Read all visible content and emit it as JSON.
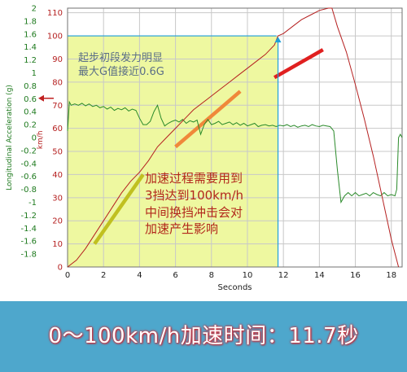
{
  "chart_data": {
    "type": "line",
    "xlabel": "Seconds",
    "ylabel_left": "Longitudinal Acceleration (g)",
    "ylabel_speed": "km/h",
    "xlim": [
      0,
      18.6
    ],
    "ylim_speed": [
      0,
      112
    ],
    "ylim_accel": [
      -2,
      2
    ],
    "x_ticks": [
      "0",
      "2",
      "4",
      "6",
      "8",
      "10",
      "12",
      "14",
      "16",
      "18"
    ],
    "speed_ticks": [
      "0",
      "10",
      "20",
      "30",
      "40",
      "50",
      "60",
      "70",
      "80",
      "90",
      "100",
      "110"
    ],
    "accel_ticks": [
      "2",
      "1.8",
      "1.6",
      "1.4",
      "1.2",
      "1",
      "0.8",
      "0.6",
      "0.4",
      "0.2",
      "0",
      "-0.2",
      "-0.4",
      "-0.6",
      "-0.8",
      "-1",
      "-1.2",
      "-1.4",
      "-1.6",
      "-1.8"
    ],
    "grid": true,
    "highlight": {
      "x_end": 11.7,
      "speed_end": 100,
      "color": "#eef8a0"
    },
    "series": [
      {
        "color": "#b52020",
        "x": [
          0,
          0.5,
          1,
          1.5,
          2,
          2.5,
          3,
          3.5,
          4,
          4.5,
          5,
          5.5,
          6,
          6.5,
          7,
          7.5,
          8,
          8.5,
          9,
          9.5,
          10,
          10.5,
          11,
          11.5,
          11.7,
          12,
          12.5,
          13,
          13.5,
          14,
          14.5,
          14.7,
          15,
          15.5,
          16,
          16.5,
          17,
          17.5,
          18,
          18.4
        ],
        "values": [
          0,
          3,
          8,
          14,
          20,
          26,
          32,
          37,
          41,
          46,
          52,
          56,
          60,
          64,
          68,
          71,
          74,
          77,
          80,
          83,
          86,
          89,
          92,
          96,
          100,
          101,
          104,
          107,
          109,
          111,
          112,
          112,
          104,
          93,
          79,
          64,
          48,
          30,
          12,
          0
        ]
      },
      {
        "color": "#2a8a2a",
        "x": [
          0,
          0.1,
          0.2,
          0.4,
          0.6,
          0.8,
          1.0,
          1.2,
          1.4,
          1.6,
          1.8,
          2.0,
          2.2,
          2.4,
          2.6,
          2.8,
          3.0,
          3.2,
          3.4,
          3.6,
          3.8,
          4.0,
          4.2,
          4.4,
          4.6,
          4.8,
          5.0,
          5.2,
          5.4,
          5.6,
          5.8,
          6.0,
          6.2,
          6.4,
          6.6,
          6.8,
          7.0,
          7.2,
          7.4,
          7.6,
          7.8,
          8.0,
          8.2,
          8.4,
          8.6,
          8.8,
          9.0,
          9.2,
          9.4,
          9.6,
          9.8,
          10.0,
          10.2,
          10.4,
          10.6,
          10.8,
          11.0,
          11.2,
          11.4,
          11.6,
          11.8,
          12.0,
          12.2,
          12.4,
          12.6,
          12.8,
          13.0,
          13.2,
          13.4,
          13.6,
          13.8,
          14.0,
          14.2,
          14.4,
          14.6,
          14.8,
          15.0,
          15.2,
          15.4,
          15.6,
          15.8,
          16.0,
          16.2,
          16.4,
          16.6,
          16.8,
          17.0,
          17.2,
          17.4,
          17.6,
          17.8,
          18.0,
          18.2,
          18.3,
          18.4,
          18.5,
          18.6
        ],
        "values": [
          0.1,
          0.55,
          0.5,
          0.52,
          0.5,
          0.53,
          0.49,
          0.52,
          0.48,
          0.5,
          0.46,
          0.48,
          0.44,
          0.47,
          0.42,
          0.45,
          0.43,
          0.46,
          0.41,
          0.44,
          0.42,
          0.3,
          0.2,
          0.2,
          0.25,
          0.4,
          0.5,
          0.3,
          0.18,
          0.22,
          0.25,
          0.27,
          0.24,
          0.28,
          0.22,
          0.26,
          0.24,
          0.27,
          0.05,
          0.2,
          0.28,
          0.2,
          0.22,
          0.25,
          0.2,
          0.22,
          0.24,
          0.2,
          0.23,
          0.19,
          0.22,
          0.18,
          0.2,
          0.22,
          0.17,
          0.19,
          0.2,
          0.18,
          0.19,
          0.17,
          0.19,
          0.18,
          0.2,
          0.17,
          0.19,
          0.16,
          0.18,
          0.19,
          0.17,
          0.2,
          0.18,
          0.17,
          0.19,
          0.18,
          0.17,
          0.1,
          -0.5,
          -1.0,
          -0.9,
          -0.85,
          -0.9,
          -0.85,
          -0.9,
          -0.88,
          -0.86,
          -0.9,
          -0.85,
          -0.88,
          -0.9,
          -0.85,
          -0.9,
          -0.88,
          -0.9,
          -0.8,
          0.0,
          0.05,
          0.0
        ]
      }
    ],
    "annotations": {
      "gray_line1": "起步初段发力明显",
      "gray_line2": "最大G值接近0.6G",
      "red_line1": "加速过程需要用到",
      "red_line2": "3挡达到100km/h",
      "red_line3": "中间换挡冲击会对",
      "red_line4": "加速产生影响"
    },
    "gear_marks": [
      {
        "color": "#c0c020",
        "from": [
          1.5,
          10
        ],
        "to": [
          4.2,
          40
        ]
      },
      {
        "color": "#f0883a",
        "from": [
          6.0,
          52
        ],
        "to": [
          9.6,
          76
        ]
      },
      {
        "color": "#e02020",
        "from": [
          11.5,
          82
        ],
        "to": [
          14.2,
          94
        ]
      }
    ]
  },
  "banner": {
    "text": "0～100km/h加速时间：11.7秒",
    "background": "#4ea7cc"
  }
}
